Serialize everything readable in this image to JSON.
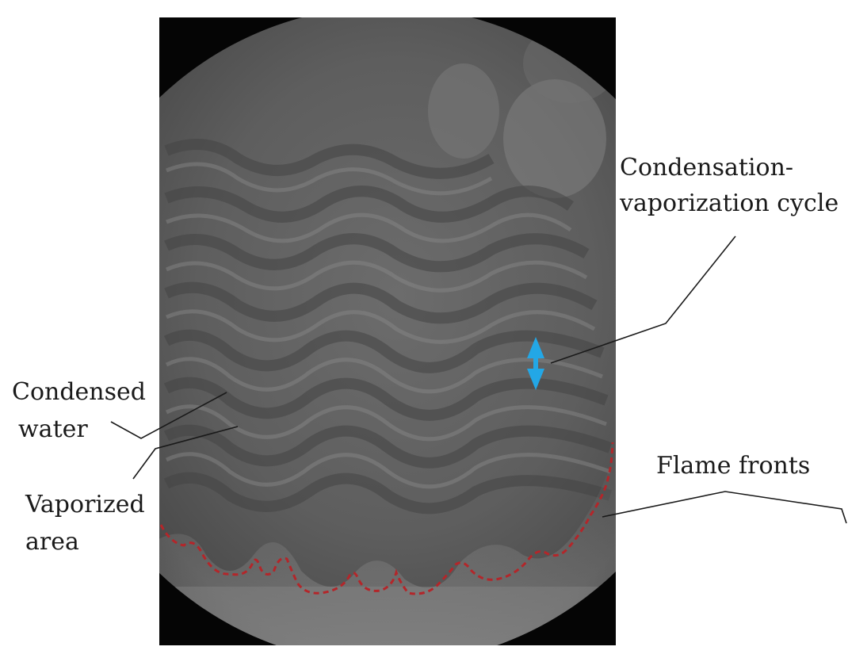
{
  "figure": {
    "photo_icon": "schlieren-photograph",
    "flame_front_color": "#b3262a",
    "cycle_arrow_color": "#23a7e6",
    "labels": {
      "cycle_line1": "Condensation-",
      "cycle_line2": "vaporization cycle",
      "condensed_line1": "Condensed",
      "condensed_line2": "water",
      "vaporized_line1": "Vaporized",
      "vaporized_line2": "area",
      "flame": "Flame fronts"
    }
  }
}
